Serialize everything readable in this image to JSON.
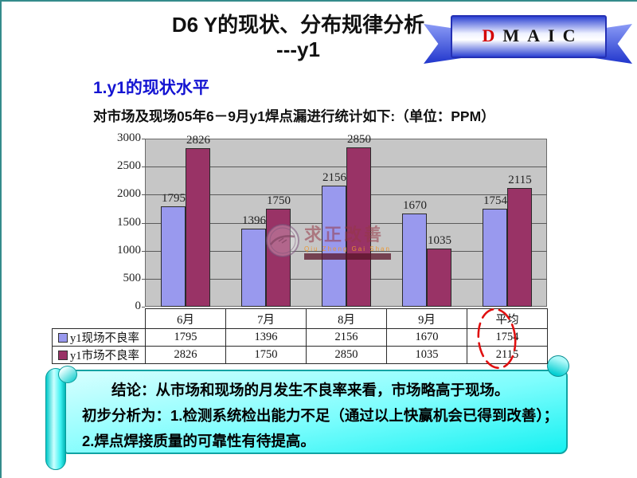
{
  "slide": {
    "title": {
      "line1": "D6 Y的现状、分布规律分析",
      "line2": "---y1"
    },
    "dmaic": {
      "letters": [
        "D",
        "M",
        "A",
        "I",
        "C"
      ],
      "first_letter_color": "#d40000"
    },
    "section_heading": "1.y1的现状水平",
    "statement": "对市场及现场05年6－9月y1焊点漏进行统计如下:（单位：PPM）",
    "watermark": {
      "name": "求正改善",
      "pinyin": "Qiu Zheng Gai Shan"
    },
    "conclusion": {
      "lines": [
        "结论：从市场和现场的月发生不良率来看，市场略高于现场。",
        "初步分析为：1.检测系统检出能力不足（通过以上快赢机会已得到改善）；",
        "2.焊点焊接质量的可靠性有待提高。"
      ],
      "panel_color": "#2ef7f7"
    },
    "accent_colors": {
      "heading_blue": "#1414d2",
      "border_teal": "#348b8b",
      "annotation_red": "#e01010"
    }
  },
  "chart_data": {
    "type": "bar",
    "categories": [
      "6月",
      "7月",
      "8月",
      "9月",
      "平均"
    ],
    "series": [
      {
        "name": "y1现场不良率",
        "color": "#9999ee",
        "values": [
          1795,
          1396,
          2156,
          1670,
          1754
        ]
      },
      {
        "name": "y1市场不良率",
        "color": "#993366",
        "values": [
          2826,
          1750,
          2850,
          1035,
          2115
        ]
      }
    ],
    "title": "",
    "xlabel": "",
    "ylabel": "",
    "unit": "PPM",
    "ylim": [
      0,
      3000
    ],
    "ytick_step": 500,
    "grid": true,
    "plot_bg": "#c6c6c6",
    "legend_position": "table-left",
    "data_labels": true,
    "annotation": "hand-drawn red dashed ellipse circling the 平均 column values 1754 and 2115"
  }
}
